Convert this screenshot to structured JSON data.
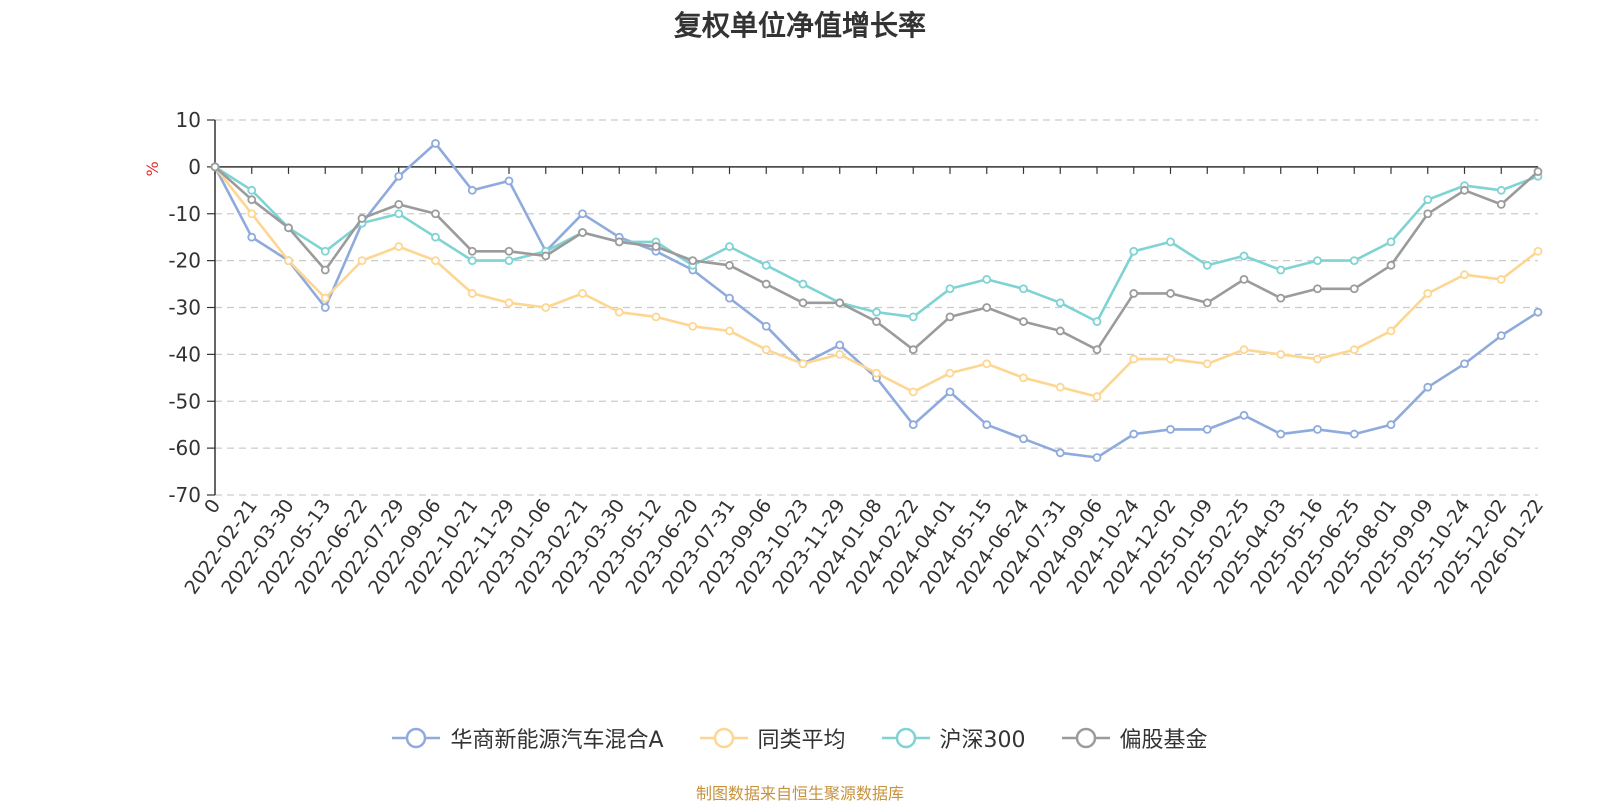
{
  "chart_data": {
    "type": "line",
    "title": "复权单位净值增长率",
    "ylabel": "%",
    "ylim": [
      -70,
      10
    ],
    "yticks": [
      10,
      0,
      -10,
      -20,
      -30,
      -40,
      -50,
      -60,
      -70
    ],
    "grid": true,
    "legend_position": "bottom",
    "categories": [
      "0",
      "2022-02-21",
      "2022-03-30",
      "2022-05-13",
      "2022-06-22",
      "2022-07-29",
      "2022-09-06",
      "2022-10-21",
      "2022-11-29",
      "2023-01-06",
      "2023-02-21",
      "2023-03-30",
      "2023-05-12",
      "2023-06-20",
      "2023-07-31",
      "2023-09-06",
      "2023-10-23",
      "2023-11-29",
      "2024-01-08",
      "2024-02-22",
      "2024-04-01",
      "2024-05-15",
      "2024-06-24",
      "2024-07-31",
      "2024-09-06",
      "2024-10-24",
      "2024-12-02",
      "2025-01-09",
      "2025-02-25",
      "2025-04-03",
      "2025-05-16",
      "2025-06-25",
      "2025-08-01",
      "2025-09-09",
      "2025-10-24",
      "2025-12-02",
      "2026-01-22"
    ],
    "series": [
      {
        "name": "华商新能源汽车混合A",
        "color": "#8faadc",
        "values": [
          0,
          -15,
          -20,
          -30,
          -12,
          -2,
          5,
          -5,
          -3,
          -18,
          -10,
          -15,
          -18,
          -22,
          -28,
          -34,
          -42,
          -38,
          -45,
          -55,
          -48,
          -55,
          -58,
          -61,
          -62,
          -57,
          -56,
          -56,
          -53,
          -57,
          -56,
          -57,
          -55,
          -47,
          -42,
          -36,
          -31
        ]
      },
      {
        "name": "同类平均",
        "color": "#fdd692",
        "values": [
          0,
          -10,
          -20,
          -28,
          -20,
          -17,
          -20,
          -27,
          -29,
          -30,
          -27,
          -31,
          -32,
          -34,
          -35,
          -39,
          -42,
          -40,
          -44,
          -48,
          -44,
          -42,
          -45,
          -47,
          -49,
          -41,
          -41,
          -42,
          -39,
          -40,
          -41,
          -39,
          -35,
          -27,
          -23,
          -24,
          -18
        ]
      },
      {
        "name": "沪深300",
        "color": "#7fd3d3",
        "values": [
          0,
          -5,
          -13,
          -18,
          -12,
          -10,
          -15,
          -20,
          -20,
          -18,
          -14,
          -16,
          -16,
          -21,
          -17,
          -21,
          -25,
          -29,
          -31,
          -32,
          -26,
          -24,
          -26,
          -29,
          -33,
          -18,
          -16,
          -21,
          -19,
          -22,
          -20,
          -20,
          -16,
          -7,
          -4,
          -5,
          -2
        ]
      },
      {
        "name": "偏股基金",
        "color": "#9b9b9b",
        "values": [
          0,
          -7,
          -13,
          -22,
          -11,
          -8,
          -10,
          -18,
          -18,
          -19,
          -14,
          -16,
          -17,
          -20,
          -21,
          -25,
          -29,
          -29,
          -33,
          -39,
          -32,
          -30,
          -33,
          -35,
          -39,
          -27,
          -27,
          -29,
          -24,
          -28,
          -26,
          -26,
          -21,
          -10,
          -5,
          -8,
          -1
        ]
      }
    ]
  },
  "source_note": "制图数据来自恒生聚源数据库"
}
